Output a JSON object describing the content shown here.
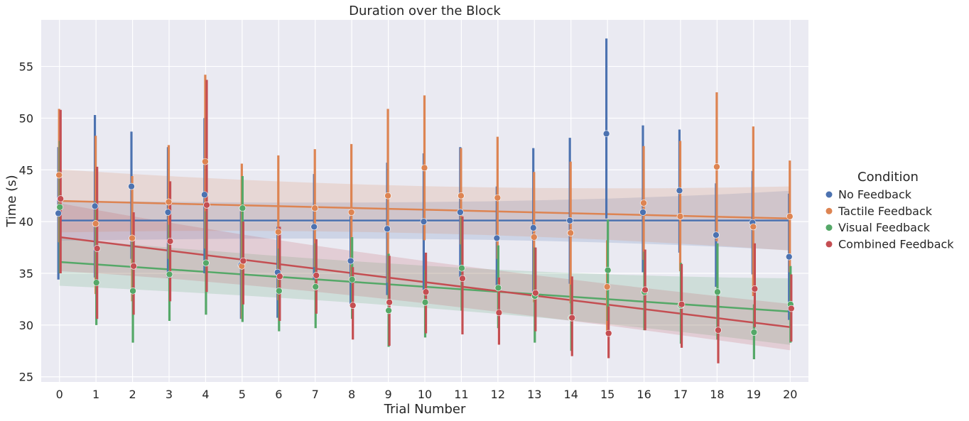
{
  "chart_data": {
    "type": "scatter",
    "title": "Duration over the Block",
    "xlabel": "Trial Number",
    "ylabel": "Time (s)",
    "xlim": [
      -0.5,
      20.5
    ],
    "ylim": [
      24.5,
      59.5
    ],
    "x_ticks": [
      0,
      1,
      2,
      3,
      4,
      5,
      6,
      7,
      8,
      9,
      10,
      11,
      12,
      13,
      14,
      15,
      16,
      17,
      18,
      19,
      20
    ],
    "y_ticks": [
      25,
      30,
      35,
      40,
      45,
      50,
      55
    ],
    "grid": true,
    "legend": {
      "title": "Condition",
      "placement": "right"
    },
    "x": [
      0,
      1,
      2,
      3,
      4,
      5,
      6,
      7,
      8,
      9,
      10,
      11,
      12,
      13,
      14,
      15,
      16,
      17,
      18,
      19,
      20
    ],
    "series": [
      {
        "name": "No Feedback",
        "color": "#4c72b0",
        "values": [
          40.8,
          41.5,
          43.4,
          40.9,
          42.6,
          35.8,
          35.1,
          39.5,
          36.2,
          39.3,
          40.0,
          40.9,
          38.4,
          39.4,
          40.1,
          48.5,
          40.9,
          43.0,
          38.7,
          39.9,
          36.6
        ],
        "ci_low": [
          34.4,
          34.6,
          36.4,
          34.6,
          35.0,
          30.6,
          30.7,
          34.4,
          31.9,
          32.9,
          33.4,
          34.6,
          33.4,
          33.0,
          34.0,
          40.3,
          35.1,
          37.0,
          33.7,
          34.9,
          30.5
        ],
        "ci_high": [
          47.2,
          50.3,
          48.7,
          47.2,
          50.0,
          41.0,
          39.5,
          44.6,
          40.5,
          45.7,
          46.6,
          47.2,
          43.4,
          47.1,
          48.1,
          57.7,
          49.3,
          48.9,
          43.7,
          44.9,
          42.7
        ],
        "fit": [
          40.1,
          40.1
        ],
        "fit_band_low": [
          38.4,
          37.6
        ],
        "fit_band_high": [
          41.8,
          42.6
        ]
      },
      {
        "name": "Tactile Feedback",
        "color": "#dd8452",
        "values": [
          44.5,
          39.8,
          38.4,
          41.9,
          45.8,
          35.7,
          39.0,
          41.3,
          40.9,
          42.5,
          45.2,
          42.5,
          42.3,
          38.5,
          38.9,
          33.7,
          41.8,
          40.5,
          45.3,
          39.5,
          40.5
        ],
        "ci_low": [
          38.0,
          33.0,
          32.3,
          36.4,
          37.4,
          30.6,
          32.4,
          35.6,
          34.5,
          34.1,
          38.2,
          37.8,
          36.4,
          32.2,
          32.1,
          29.2,
          36.3,
          35.2,
          38.1,
          32.8,
          35.1
        ],
        "ci_high": [
          50.9,
          48.3,
          44.4,
          47.4,
          54.2,
          45.6,
          46.4,
          47.0,
          47.5,
          50.9,
          52.2,
          47.1,
          48.2,
          44.8,
          45.8,
          38.2,
          47.3,
          47.8,
          52.5,
          49.2,
          45.9
        ],
        "fit": [
          42.0,
          40.3
        ],
        "fit_band_low": [
          39.4,
          37.6
        ],
        "fit_band_high": [
          44.7,
          43.0
        ]
      },
      {
        "name": "Visual Feedback",
        "color": "#55a868",
        "values": [
          41.4,
          34.1,
          33.3,
          34.9,
          36.0,
          41.3,
          33.3,
          33.7,
          34.4,
          31.4,
          32.2,
          35.5,
          33.6,
          32.8,
          30.7,
          35.3,
          33.2,
          31.9,
          33.2,
          29.3,
          32.0
        ],
        "ci_low": [
          35.0,
          30.0,
          28.3,
          30.4,
          31.0,
          30.3,
          29.4,
          29.7,
          30.6,
          27.9,
          28.8,
          31.4,
          29.7,
          28.3,
          27.5,
          30.4,
          29.5,
          28.2,
          28.6,
          26.7,
          28.3
        ],
        "ci_high": [
          47.8,
          42.0,
          38.1,
          39.7,
          41.0,
          44.4,
          37.4,
          37.9,
          38.5,
          36.9,
          35.3,
          40.4,
          37.7,
          37.5,
          33.9,
          40.2,
          37.1,
          36.0,
          37.9,
          32.0,
          35.7
        ],
        "fit": [
          36.1,
          31.3
        ],
        "fit_band_low": [
          34.1,
          28.5
        ],
        "fit_band_high": [
          38.1,
          34.1
        ]
      },
      {
        "name": "Combined Feedback",
        "color": "#c44e52",
        "values": [
          42.2,
          37.4,
          35.7,
          38.1,
          41.6,
          36.2,
          34.7,
          34.8,
          31.9,
          32.2,
          33.2,
          34.5,
          31.2,
          33.1,
          30.7,
          29.2,
          33.4,
          32.0,
          29.5,
          33.5,
          31.6
        ],
        "ci_low": [
          35.0,
          30.6,
          31.0,
          32.3,
          33.2,
          32.0,
          30.4,
          31.1,
          28.6,
          28.0,
          29.2,
          29.1,
          28.1,
          29.4,
          27.0,
          26.8,
          29.5,
          27.8,
          26.3,
          29.8,
          28.4
        ],
        "ci_high": [
          50.8,
          45.3,
          40.9,
          43.9,
          53.7,
          40.0,
          39.5,
          38.3,
          35.6,
          36.7,
          37.0,
          40.5,
          34.6,
          37.5,
          34.7,
          31.8,
          37.3,
          35.9,
          32.8,
          37.9,
          34.9
        ],
        "fit": [
          38.5,
          29.8
        ],
        "fit_band_low": [
          35.6,
          27.9
        ],
        "fit_band_high": [
          41.3,
          31.8
        ]
      }
    ]
  }
}
